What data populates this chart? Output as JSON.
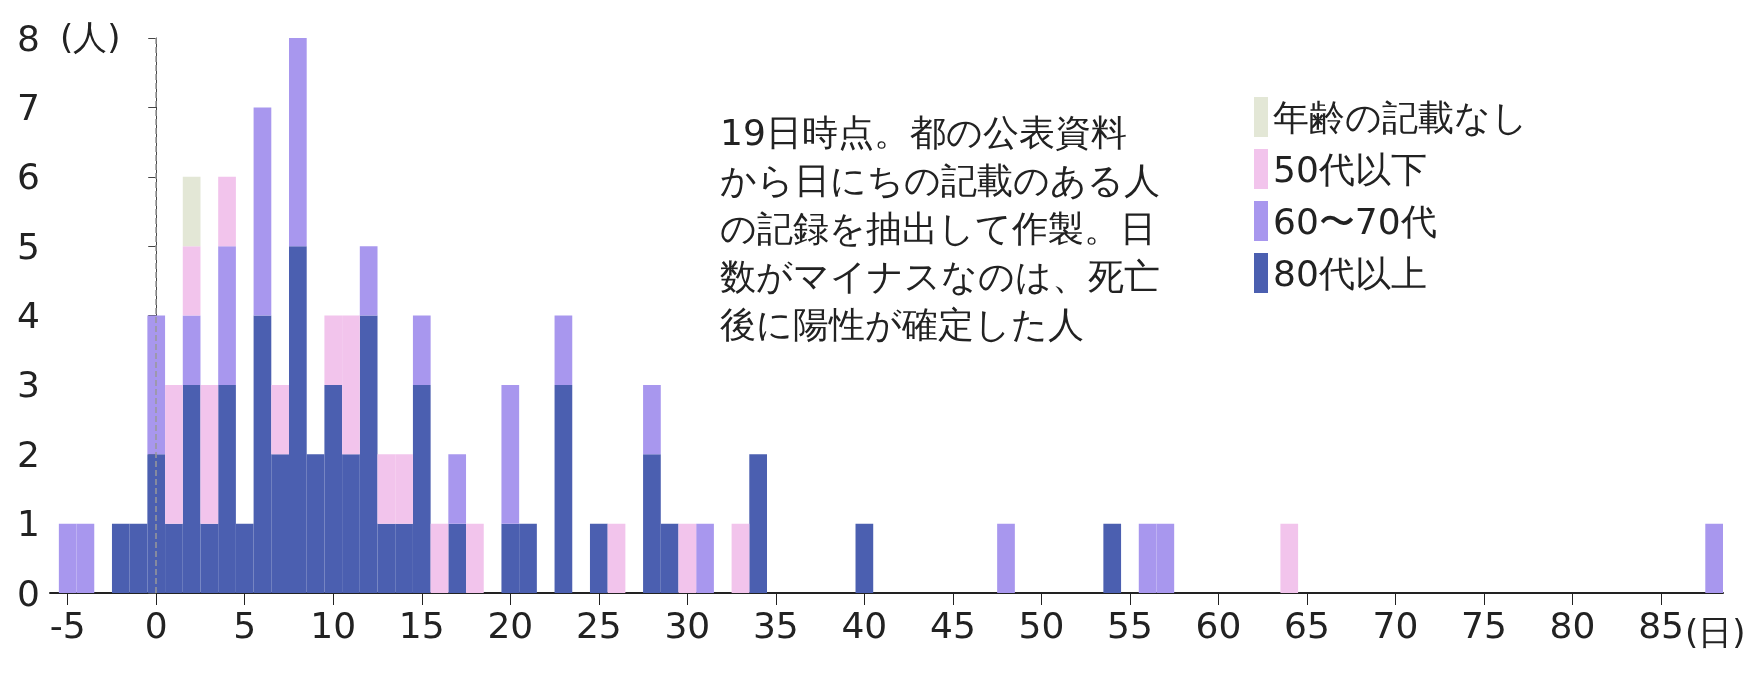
{
  "chart_data": {
    "type": "bar",
    "stacked": true,
    "xlabel": "(日)",
    "ylabel": "(人)",
    "x": [
      -5,
      -4,
      -2,
      -1,
      0,
      1,
      2,
      3,
      4,
      5,
      6,
      7,
      8,
      9,
      10,
      11,
      12,
      13,
      14,
      15,
      16,
      17,
      18,
      20,
      21,
      23,
      25,
      26,
      28,
      29,
      30,
      31,
      33,
      34,
      40,
      48,
      54,
      56,
      57,
      64,
      88
    ],
    "series": [
      {
        "name": "80代以上",
        "color": "#4b5fb0",
        "values": [
          null,
          null,
          1,
          1,
          2,
          1,
          3,
          1,
          3,
          1,
          4,
          2,
          5,
          2,
          3,
          2,
          4,
          1,
          1,
          3,
          null,
          1,
          null,
          1,
          1,
          3,
          1,
          null,
          2,
          1,
          null,
          null,
          null,
          2,
          1,
          null,
          1,
          null,
          null,
          null,
          null
        ]
      },
      {
        "name": "60〜70代",
        "color": "#a897ee",
        "values": [
          1,
          1,
          null,
          null,
          2,
          null,
          1,
          null,
          2,
          null,
          3,
          null,
          3,
          null,
          null,
          null,
          1,
          null,
          null,
          1,
          null,
          1,
          null,
          2,
          null,
          1,
          null,
          null,
          1,
          null,
          null,
          1,
          null,
          null,
          null,
          1,
          null,
          1,
          1,
          null,
          1
        ]
      },
      {
        "name": "50代以下",
        "color": "#f2c4ec",
        "values": [
          null,
          null,
          null,
          null,
          null,
          2,
          1,
          2,
          1,
          null,
          null,
          1,
          null,
          null,
          1,
          2,
          null,
          1,
          1,
          null,
          1,
          null,
          1,
          null,
          null,
          null,
          null,
          1,
          null,
          null,
          1,
          null,
          1,
          null,
          null,
          null,
          null,
          null,
          null,
          1,
          null
        ]
      },
      {
        "name": "年齢の記載なし",
        "color": "#e3e7d6",
        "values": [
          null,
          null,
          null,
          null,
          null,
          null,
          1,
          null,
          null,
          null,
          null,
          null,
          null,
          null,
          null,
          null,
          null,
          null,
          null,
          null,
          null,
          null,
          null,
          null,
          null,
          null,
          null,
          null,
          null,
          null,
          null,
          null,
          null,
          null,
          null,
          null,
          null,
          null,
          null,
          null,
          null
        ]
      }
    ],
    "xlim": [
      -6,
      88.5
    ],
    "xticks": [
      -5,
      0,
      5,
      10,
      15,
      20,
      25,
      30,
      35,
      40,
      45,
      50,
      55,
      60,
      65,
      70,
      75,
      80,
      85
    ],
    "ylim": [
      0,
      8
    ],
    "yticks": [
      0,
      1,
      2,
      3,
      4,
      5,
      6,
      7,
      8
    ],
    "grid": false,
    "legend": "top right",
    "ref_lines": [
      {
        "axis": "x",
        "value": 0,
        "line_style": "dashed",
        "color": "#999999"
      }
    ],
    "annotations": [
      "19日時点。都の公表資料から日にちの記載のある人の記録を抽出して作製。日数がマイナスなのは、死亡後に陽性が確定した人"
    ]
  }
}
